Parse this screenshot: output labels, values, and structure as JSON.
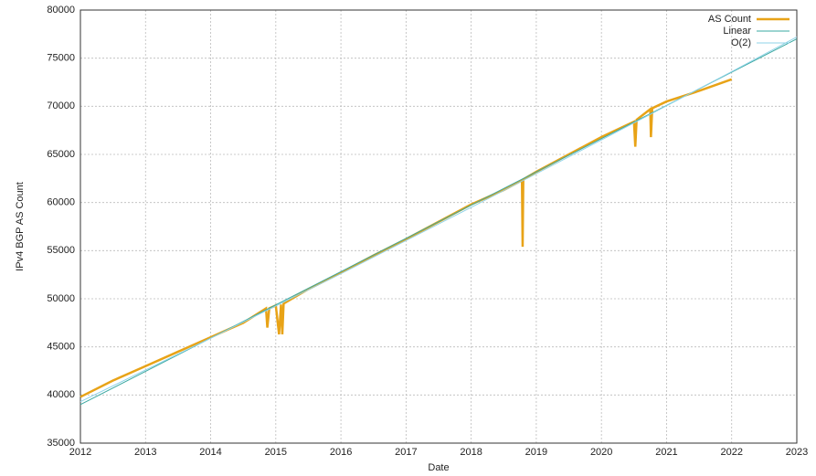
{
  "chart_data": {
    "type": "line",
    "x_label": "Date",
    "y_label": "IPv4 BGP AS Count",
    "xlim": [
      2012,
      2023
    ],
    "xticks": [
      2012,
      2013,
      2014,
      2015,
      2016,
      2017,
      2018,
      2019,
      2020,
      2021,
      2022,
      2023
    ],
    "ylim": [
      35000,
      80000
    ],
    "yticks": [
      35000,
      40000,
      45000,
      50000,
      55000,
      60000,
      65000,
      70000,
      75000,
      80000
    ],
    "grid": true,
    "legend": "top-right",
    "series": [
      {
        "name": "AS Count",
        "color": "#e8a317",
        "x": [
          2012,
          2012.5,
          2013,
          2013.5,
          2014,
          2014.5,
          2014.85,
          2014.87,
          2014.9,
          2015.0,
          2015.05,
          2015.08,
          2015.1,
          2015.12,
          2015.5,
          2016,
          2016.5,
          2017,
          2017.5,
          2018,
          2018.5,
          2018.78,
          2018.79,
          2018.8,
          2019,
          2019.5,
          2020,
          2020.5,
          2020.52,
          2020.54,
          2020.75,
          2020.76,
          2020.78,
          2021,
          2021.5,
          2022
        ],
        "values": [
          39800,
          41500,
          43000,
          44500,
          46000,
          47500,
          49000,
          47000,
          49000,
          49300,
          46300,
          49400,
          46300,
          49500,
          51000,
          52700,
          54500,
          56200,
          58000,
          59800,
          61300,
          62300,
          55400,
          62400,
          63200,
          65000,
          66800,
          68400,
          65800,
          68600,
          69700,
          66800,
          69800,
          70500,
          71600,
          72800
        ]
      },
      {
        "name": "Linear",
        "color": "#3aa8a0",
        "x": [
          2012,
          2023
        ],
        "values": [
          39000,
          77000
        ]
      },
      {
        "name": "O(2)",
        "color": "#8fd3e8",
        "x": [
          2012,
          2014,
          2016,
          2018,
          2020,
          2022,
          2023
        ],
        "values": [
          39300,
          45900,
          52600,
          59500,
          66500,
          73600,
          77200
        ]
      }
    ]
  }
}
